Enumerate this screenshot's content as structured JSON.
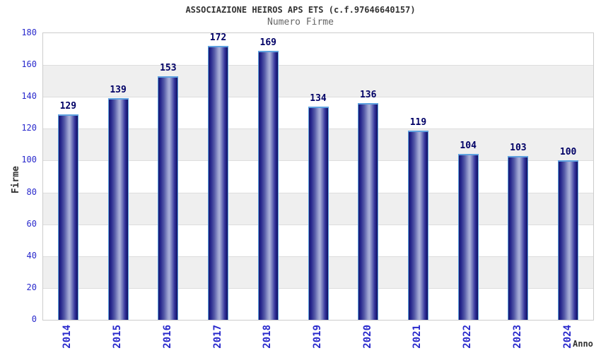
{
  "header": {
    "title": "ASSOCIAZIONE HEIROS APS ETS (c.f.97646640157)",
    "subtitle": "Numero Firme"
  },
  "chart_data": {
    "type": "bar",
    "title": "ASSOCIAZIONE HEIROS APS ETS (c.f.97646640157)",
    "subtitle": "Numero Firme",
    "categories": [
      "2014",
      "2015",
      "2016",
      "2017",
      "2018",
      "2019",
      "2020",
      "2021",
      "2022",
      "2023",
      "2024"
    ],
    "values": [
      129,
      139,
      153,
      172,
      169,
      134,
      136,
      119,
      104,
      103,
      100
    ],
    "xlabel": "Anno",
    "ylabel": "Firme",
    "ylim": [
      0,
      180
    ],
    "ytick_step": 20,
    "yticks": [
      0,
      20,
      40,
      60,
      80,
      100,
      120,
      140,
      160,
      180
    ],
    "legend": "none",
    "grid": "horizontal-bands",
    "colors": {
      "background": "#ffffff",
      "axis_text": "#2929cc",
      "value_label": "#000066",
      "title": "#333333",
      "subtitle": "#666666",
      "axis_title": "#333333",
      "band_gray": "#efefef",
      "grid_line": "#dddddd",
      "plot_border": "#cccccc",
      "bar_dark": "#191970",
      "bar_light": "#aab0d8",
      "bar_top_border": "#5fa2e0"
    }
  }
}
